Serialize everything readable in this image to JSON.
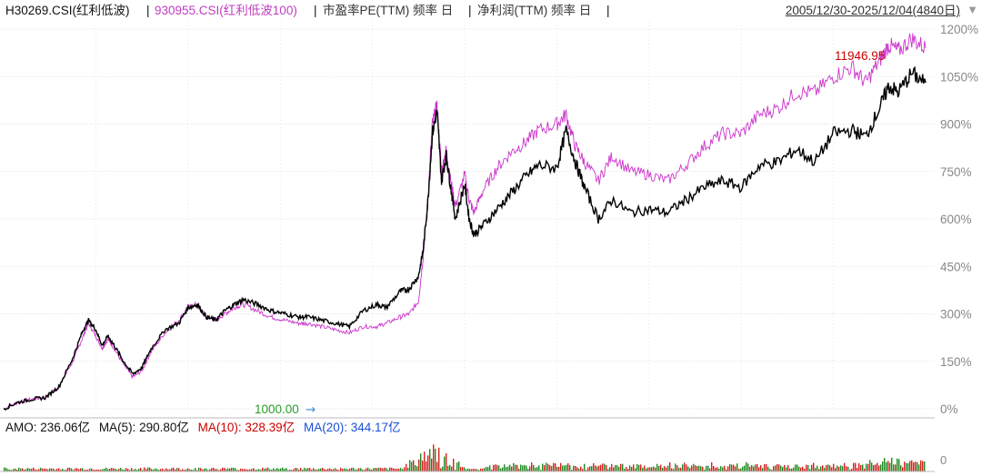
{
  "header": {
    "series1_label": "H30269.CSI(红利低波)",
    "sep1": "|",
    "series2_label": "930955.CSI(红利低波100)",
    "sep2": "|",
    "indicator1": "市盈率PE(TTM) 频率 日",
    "sep3": "|",
    "indicator2": "净利润(TTM) 频率 日",
    "sep4": "|",
    "date_range": "2005/12/30-2025/12/04(4840日)",
    "dropdown_icon": "triangle-down-icon"
  },
  "colors": {
    "series1": "#000000",
    "series2": "#cc33cc",
    "grid": "#d6d6d6",
    "axis_text": "#888888",
    "ma10": "#cc0000",
    "ma20": "#1a4fd6",
    "volume_up": "#d42020",
    "volume_down": "#1f8a1f",
    "max_label": "#cc0000",
    "min_label": "#2a9d2a"
  },
  "chart_data": {
    "type": "line",
    "y_axis_unit": "%",
    "y_ticks": [
      "1200%",
      "1050%",
      "900%",
      "750%",
      "600%",
      "450%",
      "300%",
      "150%",
      "0%"
    ],
    "ylim": [
      0,
      1200
    ],
    "x_range": [
      "2005/12/30",
      "2025/12/04"
    ],
    "grid": true,
    "annotations": {
      "max_label": "11946.95",
      "min_label": "1000.00",
      "min_arrow": "→"
    },
    "series": [
      {
        "x": [
          0,
          0.015,
          0.03,
          0.045,
          0.06,
          0.075,
          0.085,
          0.092,
          0.1,
          0.107,
          0.113,
          0.12,
          0.13,
          0.14,
          0.15,
          0.16,
          0.175,
          0.19,
          0.2,
          0.21,
          0.22,
          0.23,
          0.24,
          0.25,
          0.26,
          0.275,
          0.29,
          0.305,
          0.32,
          0.33,
          0.345,
          0.36,
          0.375,
          0.39,
          0.405,
          0.415,
          0.43,
          0.44,
          0.45,
          0.455,
          0.46,
          0.465,
          0.47,
          0.475,
          0.48,
          0.485,
          0.49,
          0.5,
          0.505,
          0.51,
          0.52,
          0.535,
          0.55,
          0.565,
          0.58,
          0.6,
          0.61,
          0.62,
          0.63,
          0.645,
          0.66,
          0.68,
          0.7,
          0.72,
          0.74,
          0.76,
          0.78,
          0.8,
          0.82,
          0.84,
          0.86,
          0.88,
          0.9,
          0.92,
          0.935,
          0.95,
          0.96,
          0.97,
          0.985,
          1.0
        ],
        "values": [
          0,
          20,
          30,
          35,
          70,
          160,
          240,
          280,
          250,
          200,
          230,
          200,
          150,
          110,
          130,
          190,
          250,
          270,
          320,
          330,
          290,
          280,
          310,
          330,
          345,
          330,
          310,
          300,
          290,
          290,
          280,
          270,
          260,
          310,
          330,
          320,
          370,
          380,
          420,
          500,
          650,
          870,
          940,
          720,
          800,
          700,
          600,
          710,
          600,
          550,
          580,
          630,
          680,
          730,
          770,
          760,
          880,
          780,
          700,
          600,
          660,
          620,
          630,
          620,
          660,
          700,
          720,
          700,
          770,
          780,
          820,
          780,
          870,
          880,
          860,
          950,
          1020,
          1000,
          1060,
          1030
        ]
      },
      {
        "x": [
          0,
          0.015,
          0.03,
          0.045,
          0.06,
          0.075,
          0.085,
          0.092,
          0.1,
          0.107,
          0.113,
          0.12,
          0.13,
          0.14,
          0.15,
          0.16,
          0.175,
          0.19,
          0.2,
          0.21,
          0.22,
          0.23,
          0.24,
          0.25,
          0.26,
          0.275,
          0.29,
          0.305,
          0.32,
          0.33,
          0.345,
          0.36,
          0.375,
          0.39,
          0.405,
          0.415,
          0.43,
          0.44,
          0.45,
          0.455,
          0.46,
          0.465,
          0.47,
          0.475,
          0.48,
          0.485,
          0.49,
          0.5,
          0.505,
          0.51,
          0.52,
          0.535,
          0.55,
          0.565,
          0.58,
          0.6,
          0.61,
          0.62,
          0.63,
          0.645,
          0.66,
          0.68,
          0.7,
          0.72,
          0.74,
          0.76,
          0.78,
          0.8,
          0.82,
          0.84,
          0.86,
          0.88,
          0.9,
          0.92,
          0.935,
          0.95,
          0.96,
          0.97,
          0.985,
          1.0
        ],
        "values": [
          0,
          20,
          30,
          35,
          70,
          150,
          220,
          270,
          230,
          190,
          220,
          190,
          140,
          100,
          120,
          180,
          240,
          280,
          320,
          330,
          290,
          280,
          300,
          320,
          330,
          310,
          290,
          280,
          270,
          270,
          260,
          250,
          240,
          260,
          260,
          270,
          290,
          300,
          340,
          480,
          660,
          900,
          960,
          750,
          820,
          720,
          640,
          740,
          660,
          620,
          690,
          760,
          810,
          840,
          880,
          900,
          930,
          830,
          780,
          720,
          800,
          750,
          740,
          720,
          770,
          830,
          870,
          870,
          930,
          950,
          1000,
          1000,
          1050,
          1080,
          1030,
          1100,
          1150,
          1130,
          1170,
          1140
        ]
      }
    ]
  },
  "volume": {
    "amo_label": "AMO: 236.06亿",
    "ma5_label": "MA(5): 290.80亿",
    "ma10_label": "MA(10): 328.39亿",
    "ma20_label": "MA(20): 344.17亿",
    "axis_tick": "0"
  }
}
